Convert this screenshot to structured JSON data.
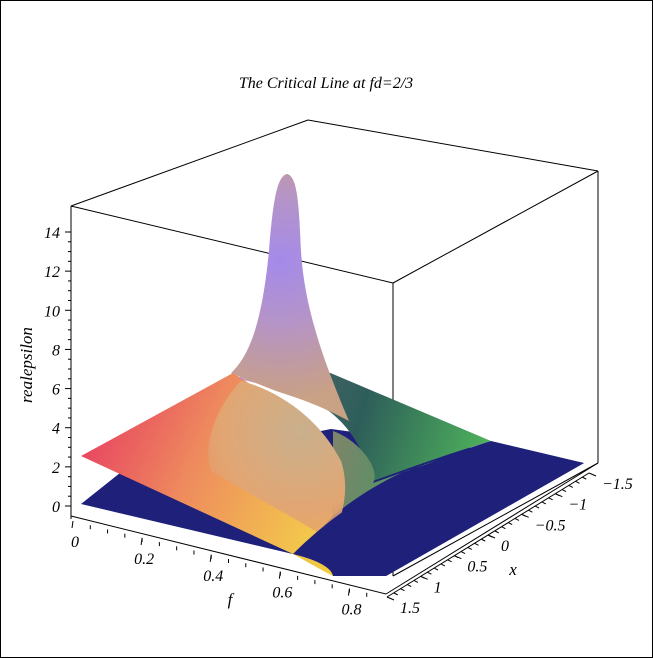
{
  "chart_data": {
    "type": "surface3d",
    "title": "The Critical Line at fd=2/3",
    "axes": {
      "x": {
        "label": "x",
        "ticks": [
          "1.5",
          "1",
          "0.5",
          "0",
          "−0.5",
          "−1",
          "−1.5"
        ],
        "range": [
          -1.5,
          1.5
        ]
      },
      "f": {
        "label": "f",
        "ticks": [
          "0",
          "0.2",
          "0.4",
          "0.6",
          "0.8"
        ],
        "range": [
          0,
          0.9
        ]
      },
      "z": {
        "label": "realepsilon",
        "ticks": [
          "0",
          "2",
          "4",
          "6",
          "8",
          "10",
          "12",
          "14"
        ],
        "range": [
          0,
          15
        ]
      }
    },
    "surfaces": [
      {
        "name": "",
        "color_scheme": "plasma-like gradient (red, orange, yellow, green, purple)",
        "peak": {
          "f": 0.55,
          "x": 0,
          "z": 14.5
        },
        "base_level": 2.4
      },
      {
        "name": "",
        "color": "#1E207A",
        "level": 0
      }
    ],
    "colors": {
      "flat_surface": "#1E207A",
      "peak": "#9F86E8",
      "red_corner": "#E9465F",
      "yellow_corner": "#F6C947",
      "green_edge": "#57C35A",
      "dark_teal": "#2C5C5C"
    },
    "box": true,
    "grid": false
  }
}
